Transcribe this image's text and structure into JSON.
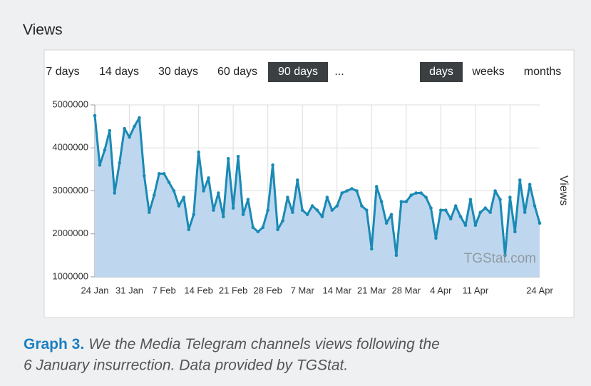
{
  "page_title": "Views",
  "ui": {
    "ranges": [
      "7 days",
      "14 days",
      "30 days",
      "60 days",
      "90 days",
      "..."
    ],
    "selected_range": 4,
    "units": [
      "days",
      "weeks",
      "months"
    ],
    "selected_unit": 0
  },
  "chart_data": {
    "type": "line",
    "y_label": "Views",
    "watermark": "TGStat.com",
    "categories": [
      "24 Jan",
      null,
      null,
      null,
      null,
      null,
      null,
      "31 Jan",
      null,
      null,
      null,
      null,
      null,
      null,
      "7 Feb",
      null,
      null,
      null,
      null,
      null,
      null,
      "14 Feb",
      null,
      null,
      null,
      null,
      null,
      null,
      "21 Feb",
      null,
      null,
      null,
      null,
      null,
      null,
      "28 Feb",
      null,
      null,
      null,
      null,
      null,
      null,
      "7 Mar",
      null,
      null,
      null,
      null,
      null,
      null,
      "14 Mar",
      null,
      null,
      null,
      null,
      null,
      null,
      "21 Mar",
      null,
      null,
      null,
      null,
      null,
      null,
      "28 Mar",
      null,
      null,
      null,
      null,
      null,
      null,
      "4 Apr",
      null,
      null,
      null,
      null,
      null,
      null,
      "11 Apr",
      null,
      null,
      null,
      null,
      null,
      null,
      null,
      null,
      null,
      null,
      null,
      null,
      "24 Apr"
    ],
    "series": [
      {
        "name": "Views",
        "color": "#1a8ab5",
        "fill": "#bed7ee",
        "values": [
          4750000,
          3600000,
          3950000,
          4400000,
          2950000,
          3650000,
          4450000,
          4250000,
          4500000,
          4700000,
          3350000,
          2500000,
          2900000,
          3400000,
          3400000,
          3200000,
          3000000,
          2650000,
          2850000,
          2100000,
          2450000,
          3900000,
          3000000,
          3300000,
          2550000,
          2950000,
          2400000,
          3750000,
          2600000,
          3800000,
          2450000,
          2800000,
          2150000,
          2050000,
          2150000,
          2550000,
          3600000,
          2100000,
          2300000,
          2850000,
          2500000,
          3250000,
          2550000,
          2450000,
          2650000,
          2550000,
          2400000,
          2850000,
          2550000,
          2650000,
          2950000,
          3000000,
          3050000,
          3000000,
          2650000,
          2550000,
          1650000,
          3100000,
          2750000,
          2250000,
          2450000,
          1500000,
          2750000,
          2750000,
          2900000,
          2950000,
          2950000,
          2850000,
          2600000,
          1900000,
          2550000,
          2550000,
          2350000,
          2650000,
          2400000,
          2200000,
          2800000,
          2200000,
          2500000,
          2600000,
          2500000,
          3000000,
          2800000,
          1500000,
          2850000,
          2050000,
          3250000,
          2500000,
          3150000,
          2650000,
          2250000
        ]
      }
    ],
    "ylim": [
      1000000,
      5000000
    ],
    "yticks": [
      1000000,
      2000000,
      3000000,
      4000000,
      5000000
    ],
    "grid": true
  },
  "caption": {
    "label": "Graph 3.",
    "lines": [
      "We the Media Telegram channels views following the",
      "6 January insurrection. Data provided by TGStat."
    ]
  }
}
